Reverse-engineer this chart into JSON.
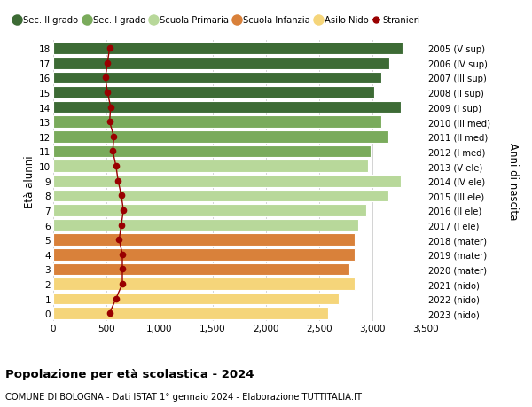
{
  "ages": [
    18,
    17,
    16,
    15,
    14,
    13,
    12,
    11,
    10,
    9,
    8,
    7,
    6,
    5,
    4,
    3,
    2,
    1,
    0
  ],
  "right_labels": [
    "2005 (V sup)",
    "2006 (IV sup)",
    "2007 (III sup)",
    "2008 (II sup)",
    "2009 (I sup)",
    "2010 (III med)",
    "2011 (II med)",
    "2012 (I med)",
    "2013 (V ele)",
    "2014 (IV ele)",
    "2015 (III ele)",
    "2016 (II ele)",
    "2017 (I ele)",
    "2018 (mater)",
    "2019 (mater)",
    "2020 (mater)",
    "2021 (nido)",
    "2022 (nido)",
    "2023 (nido)"
  ],
  "bar_values": [
    3280,
    3160,
    3080,
    3020,
    3270,
    3080,
    3150,
    2980,
    2960,
    3270,
    3150,
    2940,
    2870,
    2830,
    2830,
    2780,
    2830,
    2680,
    2580
  ],
  "bar_colors": [
    "#3d6b35",
    "#3d6b35",
    "#3d6b35",
    "#3d6b35",
    "#3d6b35",
    "#7aab5c",
    "#7aab5c",
    "#7aab5c",
    "#b8d89a",
    "#b8d89a",
    "#b8d89a",
    "#b8d89a",
    "#b8d89a",
    "#d9813a",
    "#d9813a",
    "#d9813a",
    "#f5d57a",
    "#f5d57a",
    "#f5d57a"
  ],
  "stranieri_values": [
    530,
    510,
    490,
    510,
    540,
    530,
    570,
    560,
    590,
    610,
    640,
    660,
    640,
    620,
    650,
    650,
    650,
    590,
    530
  ],
  "title": "Popolazione per età scolastica - 2024",
  "subtitle": "COMUNE DI BOLOGNA - Dati ISTAT 1° gennaio 2024 - Elaborazione TUTTITALIA.IT",
  "ylabel": "Età alunni",
  "right_ylabel": "Anni di nascita",
  "xlim": [
    0,
    3500
  ],
  "xticks": [
    0,
    500,
    1000,
    1500,
    2000,
    2500,
    3000,
    3500
  ],
  "xtick_labels": [
    "0",
    "500",
    "1,000",
    "1,500",
    "2,000",
    "2,500",
    "3,000",
    "3,500"
  ],
  "legend_labels": [
    "Sec. II grado",
    "Sec. I grado",
    "Scuola Primaria",
    "Scuola Infanzia",
    "Asilo Nido",
    "Stranieri"
  ],
  "legend_colors": [
    "#3d6b35",
    "#7aab5c",
    "#b8d89a",
    "#d9813a",
    "#f5d57a",
    "#990000"
  ],
  "bar_height": 0.82,
  "bg_color": "#ffffff",
  "grid_color": "#cccccc",
  "stranieri_color": "#990000"
}
